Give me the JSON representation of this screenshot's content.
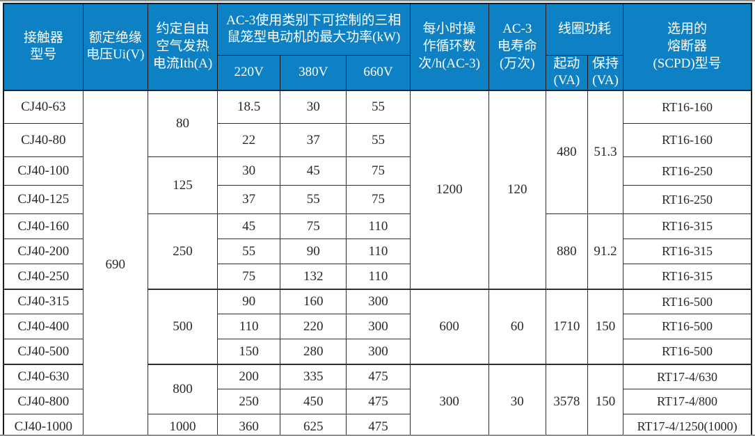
{
  "colors": {
    "header_bg": "#0e81c4",
    "header_text": "#ffffff",
    "body_text": "#282828",
    "border": "#2d2d2d"
  },
  "table": {
    "header": {
      "contactor_model": "接触器\n型号",
      "insulation_voltage": "额定绝缘\n电压Ui(V)",
      "thermal_current": "约定自由\n空气发热\n电流Ith(A)",
      "ac3_max_power": "AC-3使用类别下可控制的三相\n鼠笼型电动机的最大功率(kW)",
      "voltage_220": "220V",
      "voltage_380": "380V",
      "voltage_660": "660V",
      "cycles_per_hour": "每小时操\n作循环数\n次/h(AC-3)",
      "electrical_life": "AC-3\n电寿命\n(万次)",
      "coil_power": "线圈功耗",
      "coil_start": "起动\n(VA)",
      "coil_hold": "保持\n(VA)",
      "fuse_model": "选用的\n熔断器\n(SCPD)型号"
    },
    "rows": [
      {
        "cells": [
          {
            "v": "CJ40-63"
          },
          {
            "v": "690",
            "rs": 13
          },
          {
            "v": "80",
            "rs": 2
          },
          {
            "v": "18.5"
          },
          {
            "v": "30"
          },
          {
            "v": "55"
          },
          {
            "v": "1200",
            "rs": 7
          },
          {
            "v": "120",
            "rs": 7
          },
          {
            "v": "480",
            "rs": 4
          },
          {
            "v": "51.3",
            "rs": 4
          },
          {
            "v": "RT16-160"
          }
        ]
      },
      {
        "cells": [
          {
            "v": "CJ40-80"
          },
          {
            "v": "22"
          },
          {
            "v": "37"
          },
          {
            "v": "55"
          },
          {
            "v": "RT16-160"
          }
        ]
      },
      {
        "cells": [
          {
            "v": "CJ40-100"
          },
          {
            "v": "125",
            "rs": 2
          },
          {
            "v": "30"
          },
          {
            "v": "45"
          },
          {
            "v": "75"
          },
          {
            "v": "RT16-250"
          }
        ]
      },
      {
        "cells": [
          {
            "v": "CJ40-125"
          },
          {
            "v": "37"
          },
          {
            "v": "55"
          },
          {
            "v": "75"
          },
          {
            "v": "RT16-250"
          }
        ]
      },
      {
        "cells": [
          {
            "v": "CJ40-160"
          },
          {
            "v": "250",
            "rs": 3
          },
          {
            "v": "45"
          },
          {
            "v": "75"
          },
          {
            "v": "110"
          },
          {
            "v": "880",
            "rs": 3
          },
          {
            "v": "91.2",
            "rs": 3
          },
          {
            "v": "RT16-315"
          }
        ]
      },
      {
        "cells": [
          {
            "v": "CJ40-200"
          },
          {
            "v": "55"
          },
          {
            "v": "90"
          },
          {
            "v": "110"
          },
          {
            "v": "RT16-315"
          }
        ]
      },
      {
        "cells": [
          {
            "v": "CJ40-250"
          },
          {
            "v": "75"
          },
          {
            "v": "132"
          },
          {
            "v": "110"
          },
          {
            "v": "RT16-315"
          }
        ]
      },
      {
        "cells": [
          {
            "v": "CJ40-315"
          },
          {
            "v": "500",
            "rs": 3
          },
          {
            "v": "90"
          },
          {
            "v": "160"
          },
          {
            "v": "300"
          },
          {
            "v": "600",
            "rs": 3
          },
          {
            "v": "60",
            "rs": 3
          },
          {
            "v": "1710",
            "rs": 3
          },
          {
            "v": "150",
            "rs": 3
          },
          {
            "v": "RT16-500"
          }
        ]
      },
      {
        "cells": [
          {
            "v": "CJ40-400"
          },
          {
            "v": "110"
          },
          {
            "v": "220"
          },
          {
            "v": "300"
          },
          {
            "v": "RT16-500"
          }
        ]
      },
      {
        "cells": [
          {
            "v": "CJ40-500"
          },
          {
            "v": "150"
          },
          {
            "v": "280"
          },
          {
            "v": "300"
          },
          {
            "v": "RT16-500"
          }
        ]
      },
      {
        "cells": [
          {
            "v": "CJ40-630"
          },
          {
            "v": "800",
            "rs": 2
          },
          {
            "v": "200"
          },
          {
            "v": "335"
          },
          {
            "v": "475"
          },
          {
            "v": "300",
            "rs": 3
          },
          {
            "v": "30",
            "rs": 3
          },
          {
            "v": "3578",
            "rs": 3
          },
          {
            "v": "150",
            "rs": 3
          },
          {
            "v": "RT17-4/630"
          }
        ]
      },
      {
        "cells": [
          {
            "v": "CJ40-800"
          },
          {
            "v": "250"
          },
          {
            "v": "450"
          },
          {
            "v": "475"
          },
          {
            "v": "RT17-4/800"
          }
        ]
      },
      {
        "cells": [
          {
            "v": "CJ40-1000"
          },
          {
            "v": "1000"
          },
          {
            "v": "360"
          },
          {
            "v": "625"
          },
          {
            "v": "475"
          },
          {
            "v": "RT17-4/1250(1000)"
          }
        ]
      }
    ]
  }
}
